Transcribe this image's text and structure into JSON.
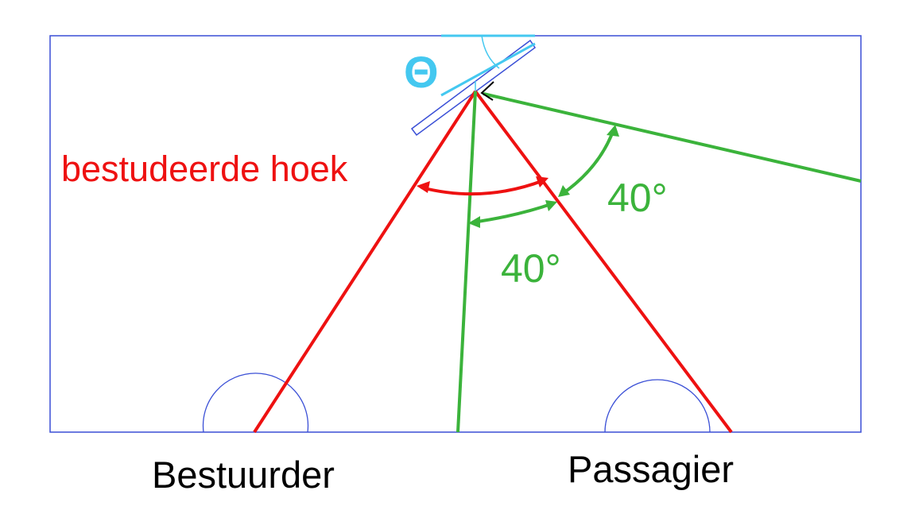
{
  "labels": {
    "theta": "Θ",
    "studied_angle": "bestudeerde hoek",
    "angle_upper": "40°",
    "angle_lower": "40°",
    "driver": "Bestuurder",
    "passenger": "Passagier"
  },
  "colors": {
    "frame": "#3a4fd6",
    "red": "#ee1111",
    "green": "#3bb33b",
    "cyan": "#44c8f0",
    "black": "#000000"
  }
}
